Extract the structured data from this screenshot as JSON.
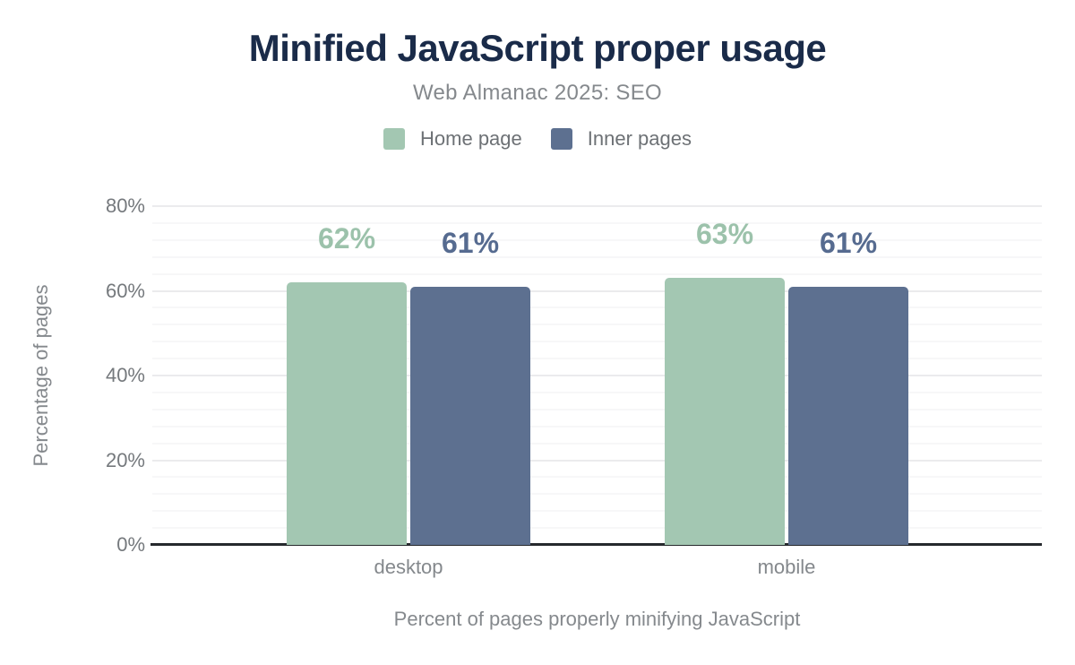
{
  "header": {
    "title": "Minified JavaScript proper usage",
    "subtitle": "Web Almanac 2025: SEO"
  },
  "chart_data": {
    "type": "bar",
    "title": "Minified JavaScript proper usage",
    "subtitle": "Web Almanac 2025: SEO",
    "categories": [
      "desktop",
      "mobile"
    ],
    "series": [
      {
        "name": "Home page",
        "color": "#a3c7b2",
        "label_color": "#9cc2ab",
        "values": [
          62,
          63
        ]
      },
      {
        "name": "Inner pages",
        "color": "#5d7090",
        "label_color": "#566b90",
        "values": [
          61,
          61
        ]
      }
    ],
    "value_suffix": "%",
    "data_labels": [
      [
        "62%",
        "63%"
      ],
      [
        "61%",
        "61%"
      ]
    ],
    "ylabel": "Percentage of pages",
    "xlabel": "Percent of pages properly minifying JavaScript",
    "ylim": [
      0,
      80
    ],
    "yticks": [
      0,
      20,
      40,
      60,
      80
    ],
    "ytick_labels": [
      "0%",
      "20%",
      "40%",
      "60%",
      "80%"
    ],
    "minor_grid_step": 4,
    "grid": true,
    "legend_position": "top",
    "colors": {
      "title": "#1a2b49",
      "muted_text": "#85898d",
      "tick_text": "#75797d",
      "axis_line": "#26292d",
      "grid_major": "#ebebed",
      "grid_minor": "#f7f7f8",
      "background": "#ffffff"
    }
  }
}
